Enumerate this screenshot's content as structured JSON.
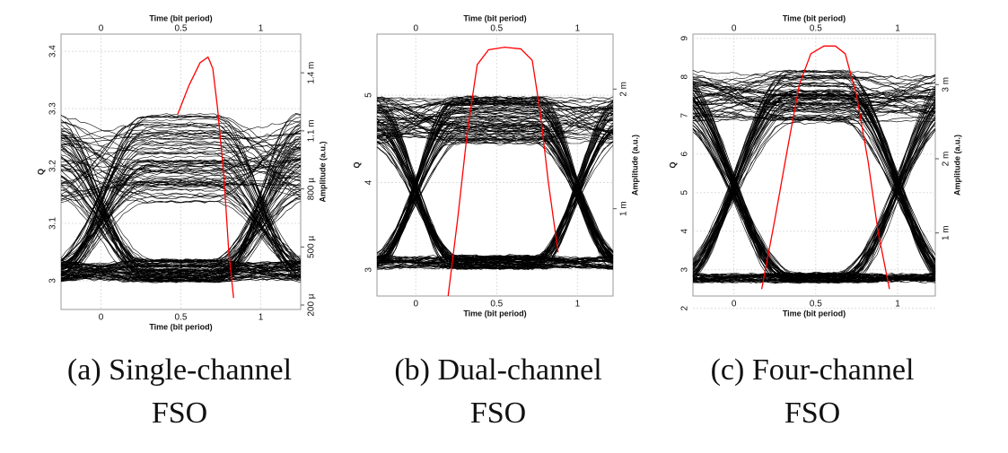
{
  "chart_data": [
    {
      "type": "eye",
      "caption": [
        "(a) Single-channel",
        "FSO"
      ],
      "xlabel": "Time (bit period)",
      "ylabel": "Q",
      "y2label": "Amplitude (a.u.)",
      "xlim": [
        -0.25,
        1.25
      ],
      "xticks": [
        0,
        0.5,
        1
      ],
      "ylim": [
        2.95,
        3.43
      ],
      "yticks": [
        3,
        3.1,
        3.2,
        3.3,
        3.4
      ],
      "y2lim": [
        0.000177,
        0.0016
      ],
      "y2ticks": [
        {
          "value": 0.0002,
          "label": "200 µ"
        },
        {
          "value": 0.0005,
          "label": "500 µ"
        },
        {
          "value": 0.0008,
          "label": "800 µ"
        },
        {
          "value": 0.0011,
          "label": "1.1 m"
        },
        {
          "value": 0.0014,
          "label": "1.4 m"
        }
      ],
      "grid": true,
      "q_curve": {
        "color": "#ff0000",
        "x": [
          0.48,
          0.55,
          0.62,
          0.67,
          0.7,
          0.73,
          0.77,
          0.8,
          0.83
        ],
        "values": [
          3.29,
          3.34,
          3.38,
          3.39,
          3.37,
          3.3,
          3.18,
          3.05,
          2.97
        ]
      }
    },
    {
      "type": "eye",
      "caption": [
        "(b) Dual-channel",
        "FSO"
      ],
      "xlabel": "Time (bit period)",
      "ylabel": "Q",
      "y2label": "Amplitude (a.u.)",
      "xlim": [
        -0.24,
        1.22
      ],
      "xticks": [
        0,
        0.5,
        1
      ],
      "ylim": [
        2.7,
        5.7
      ],
      "yticks": [
        3,
        4,
        5
      ],
      "y2lim": [
        0.00027,
        0.00246
      ],
      "y2ticks": [
        {
          "value": 0.001,
          "label": "1 m"
        },
        {
          "value": 0.002,
          "label": "2 m"
        }
      ],
      "grid": true,
      "q_curve": {
        "color": "#ff0000",
        "x": [
          0.2,
          0.26,
          0.32,
          0.38,
          0.45,
          0.55,
          0.65,
          0.72,
          0.77,
          0.82,
          0.88
        ],
        "values": [
          2.7,
          3.6,
          4.6,
          5.35,
          5.52,
          5.55,
          5.53,
          5.4,
          4.8,
          4.0,
          3.2
        ]
      }
    },
    {
      "type": "eye",
      "caption": [
        "(c) Four-channel",
        "FSO"
      ],
      "xlabel": "Time (bit period)",
      "ylabel": "Q",
      "y2label": "Amplitude (a.u.)",
      "xlim": [
        -0.25,
        1.23
      ],
      "xticks": [
        0,
        0.5,
        1
      ],
      "ylim": [
        2.32,
        9.11
      ],
      "yticks": [
        2,
        3,
        4,
        5,
        6,
        7,
        8,
        9
      ],
      "y2lim": [
        0.00015,
        0.00368
      ],
      "y2ticks": [
        {
          "value": 0.001,
          "label": "1 m"
        },
        {
          "value": 0.002,
          "label": "2 m"
        },
        {
          "value": 0.003,
          "label": "3 m"
        }
      ],
      "grid": true,
      "q_curve": {
        "color": "#ff0000",
        "x": [
          0.17,
          0.25,
          0.33,
          0.4,
          0.47,
          0.55,
          0.62,
          0.68,
          0.75,
          0.82,
          0.88,
          0.95
        ],
        "values": [
          2.5,
          4.3,
          6.2,
          7.8,
          8.6,
          8.8,
          8.8,
          8.6,
          7.5,
          5.8,
          4.0,
          2.5
        ]
      }
    }
  ]
}
